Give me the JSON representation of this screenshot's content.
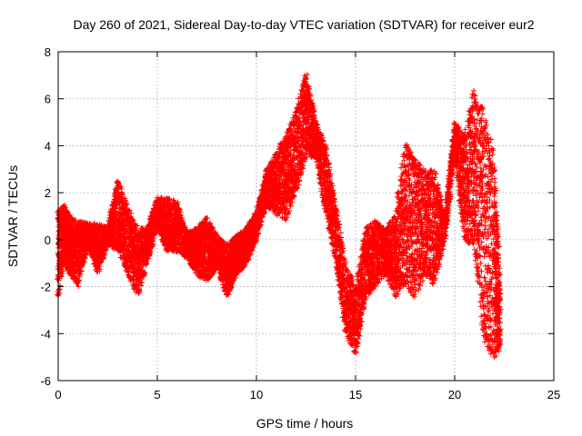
{
  "chart_data": {
    "type": "scatter",
    "title": "Day 260 of 2021, Sidereal Day-to-day VTEC variation (SDTVAR) for receiver eur2",
    "xlabel": "GPS time / hours",
    "ylabel": "SDTVAR / TECUs",
    "xlim": [
      0,
      25
    ],
    "ylim": [
      -6,
      8
    ],
    "xticks": [
      0,
      5,
      10,
      15,
      20,
      25
    ],
    "yticks": [
      -6,
      -4,
      -2,
      0,
      2,
      4,
      6,
      8
    ],
    "grid": true,
    "marker": "+",
    "color": "#ff0000",
    "series": [
      {
        "name": "SDTVAR",
        "envelope": [
          [
            0.0,
            -2.4,
            1.2
          ],
          [
            0.3,
            -1.0,
            1.5
          ],
          [
            0.6,
            -1.5,
            1.0
          ],
          [
            1.0,
            -2.0,
            0.8
          ],
          [
            1.5,
            -0.3,
            0.7
          ],
          [
            2.0,
            -1.5,
            0.7
          ],
          [
            2.5,
            -0.2,
            0.5
          ],
          [
            3.0,
            -0.5,
            2.6
          ],
          [
            3.5,
            -1.5,
            1.5
          ],
          [
            4.0,
            -2.5,
            0.5
          ],
          [
            4.5,
            -1.0,
            0.5
          ],
          [
            5.0,
            0.5,
            1.8
          ],
          [
            5.5,
            -0.5,
            1.8
          ],
          [
            6.0,
            -0.5,
            1.6
          ],
          [
            6.5,
            -0.8,
            0.3
          ],
          [
            7.0,
            -1.5,
            0.5
          ],
          [
            7.5,
            -1.8,
            1.0
          ],
          [
            8.0,
            -1.2,
            0.2
          ],
          [
            8.5,
            -2.5,
            -0.2
          ],
          [
            9.0,
            -1.5,
            0.2
          ],
          [
            9.5,
            -1.0,
            0.5
          ],
          [
            10.0,
            0.0,
            1.2
          ],
          [
            10.5,
            1.5,
            3.0
          ],
          [
            11.0,
            1.0,
            3.8
          ],
          [
            11.5,
            0.8,
            4.5
          ],
          [
            12.0,
            2.0,
            5.5
          ],
          [
            12.5,
            3.5,
            7.2
          ],
          [
            13.0,
            3.5,
            5.0
          ],
          [
            13.5,
            1.0,
            4.0
          ],
          [
            14.0,
            -1.0,
            1.5
          ],
          [
            14.5,
            -4.0,
            -1.0
          ],
          [
            15.0,
            -5.0,
            -2.0
          ],
          [
            15.5,
            -2.5,
            0.5
          ],
          [
            16.0,
            -2.0,
            0.8
          ],
          [
            16.5,
            -1.5,
            0.5
          ],
          [
            17.0,
            -2.5,
            1.0
          ],
          [
            17.5,
            -2.0,
            4.3
          ],
          [
            18.0,
            -2.5,
            3.5
          ],
          [
            18.5,
            -1.5,
            3.0
          ],
          [
            19.0,
            -2.0,
            3.0
          ],
          [
            19.5,
            0.0,
            1.0
          ],
          [
            20.0,
            3.5,
            5.0
          ],
          [
            20.5,
            0.0,
            4.5
          ],
          [
            21.0,
            -0.5,
            6.5
          ],
          [
            21.5,
            -4.5,
            5.5
          ],
          [
            22.0,
            -5.2,
            3.9
          ],
          [
            22.3,
            -4.5,
            -2.0
          ]
        ]
      }
    ]
  }
}
